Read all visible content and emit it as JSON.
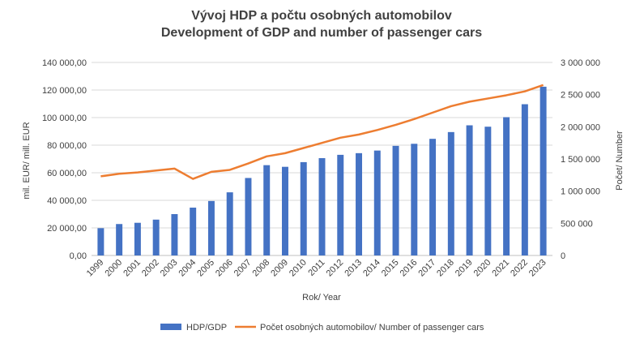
{
  "chart_data": {
    "type": "bar",
    "title": "Vývoj HDP a počtu osobných automobilov",
    "subtitle": "Development of GDP and number of passenger cars",
    "xlabel": "Rok/ Year",
    "ylabel_left": "mil. EUR/ mill. EUR",
    "ylabel_right": "Počet/ Number",
    "categories": [
      "1999",
      "2000",
      "2001",
      "2002",
      "2003",
      "2004",
      "2005",
      "2006",
      "2007",
      "2008",
      "2009",
      "2010",
      "2011",
      "2012",
      "2013",
      "2014",
      "2015",
      "2016",
      "2017",
      "2018",
      "2019",
      "2020",
      "2021",
      "2022",
      "2023"
    ],
    "series": [
      {
        "name": "HDP/GDP",
        "type": "bar",
        "axis": "left",
        "color": "#4472C4",
        "values": [
          19800,
          22800,
          23700,
          26000,
          30000,
          34700,
          39500,
          45800,
          56200,
          65500,
          64300,
          67700,
          70600,
          73000,
          74200,
          76100,
          79500,
          81000,
          84600,
          89500,
          94400,
          93400,
          100300,
          109700,
          122400
        ]
      },
      {
        "name": "Počet osobných automobilov/ Number of passenger cars",
        "type": "line",
        "axis": "right",
        "color": "#ED7D31",
        "values": [
          1230000,
          1270000,
          1290000,
          1320000,
          1350000,
          1190000,
          1300000,
          1330000,
          1430000,
          1540000,
          1590000,
          1670000,
          1750000,
          1830000,
          1880000,
          1950000,
          2030000,
          2120000,
          2220000,
          2320000,
          2390000,
          2440000,
          2490000,
          2550000,
          2650000
        ]
      }
    ],
    "yticks_left": [
      "0,00",
      "20 000,00",
      "40 000,00",
      "60 000,00",
      "80 000,00",
      "100 000,00",
      "120 000,00",
      "140 000,00"
    ],
    "yticks_right": [
      "0",
      "500 000",
      "1 000 000",
      "1 500 000",
      "2 000 000",
      "2 500 000",
      "3 000 000"
    ],
    "ylim_left": [
      0,
      140000
    ],
    "ylim_right": [
      0,
      3000000
    ],
    "grid": true,
    "legend": "bottom"
  }
}
